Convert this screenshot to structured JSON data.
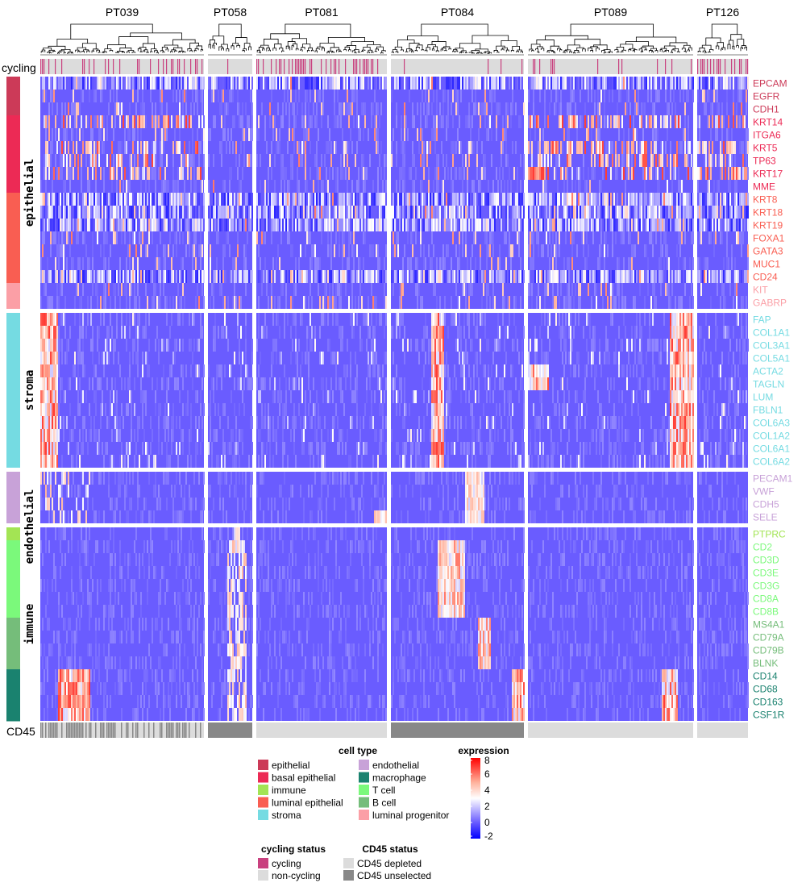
{
  "chart_data": {
    "type": "heatmap",
    "title": "",
    "columns": {
      "patients": [
        "PT039",
        "PT058",
        "PT081",
        "PT084",
        "PT089",
        "PT126"
      ],
      "relative_cell_counts": [
        200,
        55,
        160,
        160,
        205,
        60
      ],
      "cycling_fraction": [
        0.3,
        0.05,
        0.45,
        0.08,
        0.12,
        0.45
      ],
      "cd45_status": [
        "mixed",
        "CD45 unselected",
        "CD45 depleted",
        "CD45 unselected",
        "CD45 depleted",
        "CD45 depleted"
      ]
    },
    "row_groups": [
      {
        "label": "epithelial",
        "n_genes": 18
      },
      {
        "label": "stroma",
        "n_genes": 12
      },
      {
        "label": "endothelial",
        "n_genes": 4
      },
      {
        "label": "immune",
        "n_genes": 15
      }
    ],
    "genes": [
      {
        "name": "EPCAM",
        "cell_type": "epithelial"
      },
      {
        "name": "EGFR",
        "cell_type": "epithelial"
      },
      {
        "name": "CDH1",
        "cell_type": "epithelial"
      },
      {
        "name": "KRT14",
        "cell_type": "basal epithelial"
      },
      {
        "name": "ITGA6",
        "cell_type": "basal epithelial"
      },
      {
        "name": "KRT5",
        "cell_type": "basal epithelial"
      },
      {
        "name": "TP63",
        "cell_type": "basal epithelial"
      },
      {
        "name": "KRT17",
        "cell_type": "basal epithelial"
      },
      {
        "name": "MME",
        "cell_type": "basal epithelial"
      },
      {
        "name": "KRT8",
        "cell_type": "luminal epithelial"
      },
      {
        "name": "KRT18",
        "cell_type": "luminal epithelial"
      },
      {
        "name": "KRT19",
        "cell_type": "luminal epithelial"
      },
      {
        "name": "FOXA1",
        "cell_type": "luminal epithelial"
      },
      {
        "name": "GATA3",
        "cell_type": "luminal epithelial"
      },
      {
        "name": "MUC1",
        "cell_type": "luminal epithelial"
      },
      {
        "name": "CD24",
        "cell_type": "luminal epithelial"
      },
      {
        "name": "KIT",
        "cell_type": "luminal progenitor"
      },
      {
        "name": "GABRP",
        "cell_type": "luminal progenitor"
      },
      {
        "name": "FAP",
        "cell_type": "stroma"
      },
      {
        "name": "COL1A1",
        "cell_type": "stroma"
      },
      {
        "name": "COL3A1",
        "cell_type": "stroma"
      },
      {
        "name": "COL5A1",
        "cell_type": "stroma"
      },
      {
        "name": "ACTA2",
        "cell_type": "stroma"
      },
      {
        "name": "TAGLN",
        "cell_type": "stroma"
      },
      {
        "name": "LUM",
        "cell_type": "stroma"
      },
      {
        "name": "FBLN1",
        "cell_type": "stroma"
      },
      {
        "name": "COL6A3",
        "cell_type": "stroma"
      },
      {
        "name": "COL1A2",
        "cell_type": "stroma"
      },
      {
        "name": "COL6A1",
        "cell_type": "stroma"
      },
      {
        "name": "COL6A2",
        "cell_type": "stroma"
      },
      {
        "name": "PECAM1",
        "cell_type": "endothelial"
      },
      {
        "name": "VWF",
        "cell_type": "endothelial"
      },
      {
        "name": "CDH5",
        "cell_type": "endothelial"
      },
      {
        "name": "SELE",
        "cell_type": "endothelial"
      },
      {
        "name": "PTPRC",
        "cell_type": "immune"
      },
      {
        "name": "CD2",
        "cell_type": "T cell"
      },
      {
        "name": "CD3D",
        "cell_type": "T cell"
      },
      {
        "name": "CD3E",
        "cell_type": "T cell"
      },
      {
        "name": "CD3G",
        "cell_type": "T cell"
      },
      {
        "name": "CD8A",
        "cell_type": "T cell"
      },
      {
        "name": "CD8B",
        "cell_type": "T cell"
      },
      {
        "name": "MS4A1",
        "cell_type": "B cell"
      },
      {
        "name": "CD79A",
        "cell_type": "B cell"
      },
      {
        "name": "CD79B",
        "cell_type": "B cell"
      },
      {
        "name": "BLNK",
        "cell_type": "B cell"
      },
      {
        "name": "CD14",
        "cell_type": "macrophage"
      },
      {
        "name": "CD68",
        "cell_type": "macrophage"
      },
      {
        "name": "CD163",
        "cell_type": "macrophage"
      },
      {
        "name": "CSF1R",
        "cell_type": "macrophage"
      }
    ],
    "annotation_labels": {
      "cycling": "cycling",
      "cd45": "CD45"
    },
    "color_scale": {
      "title": "expression",
      "ticks": [
        8,
        6,
        4,
        2,
        0,
        -2
      ],
      "range": [
        -2,
        8
      ],
      "stops": [
        {
          "value": -2,
          "color": "#0000ff"
        },
        {
          "value": 0,
          "color": "#6a5cff"
        },
        {
          "value": 3,
          "color": "#ffffff"
        },
        {
          "value": 5,
          "color": "#ffb09a"
        },
        {
          "value": 8,
          "color": "#ff0000"
        }
      ]
    },
    "legends": {
      "cell_type": {
        "title": "cell type",
        "items": [
          {
            "label": "epithelial",
            "color": "#cc3a58"
          },
          {
            "label": "basal epithelial",
            "color": "#ec2a55"
          },
          {
            "label": "immune",
            "color": "#a3e454"
          },
          {
            "label": "luminal epithelial",
            "color": "#f95e52"
          },
          {
            "label": "stroma",
            "color": "#75dbe2"
          },
          {
            "label": "endothelial",
            "color": "#c8a2d8"
          },
          {
            "label": "macrophage",
            "color": "#1a826f"
          },
          {
            "label": "T cell",
            "color": "#7bf97b"
          },
          {
            "label": "B cell",
            "color": "#75bd7a"
          },
          {
            "label": "luminal progenitor",
            "color": "#fb9fa6"
          }
        ]
      },
      "cycling_status": {
        "title": "cycling status",
        "items": [
          {
            "label": "cycling",
            "color": "#c9417f"
          },
          {
            "label": "non-cycling",
            "color": "#dcdcdc"
          }
        ]
      },
      "cd45_status": {
        "title": "CD45 status",
        "items": [
          {
            "label": "CD45 depleted",
            "color": "#dcdcdc"
          },
          {
            "label": "CD45 unselected",
            "color": "#888888"
          }
        ]
      }
    }
  }
}
